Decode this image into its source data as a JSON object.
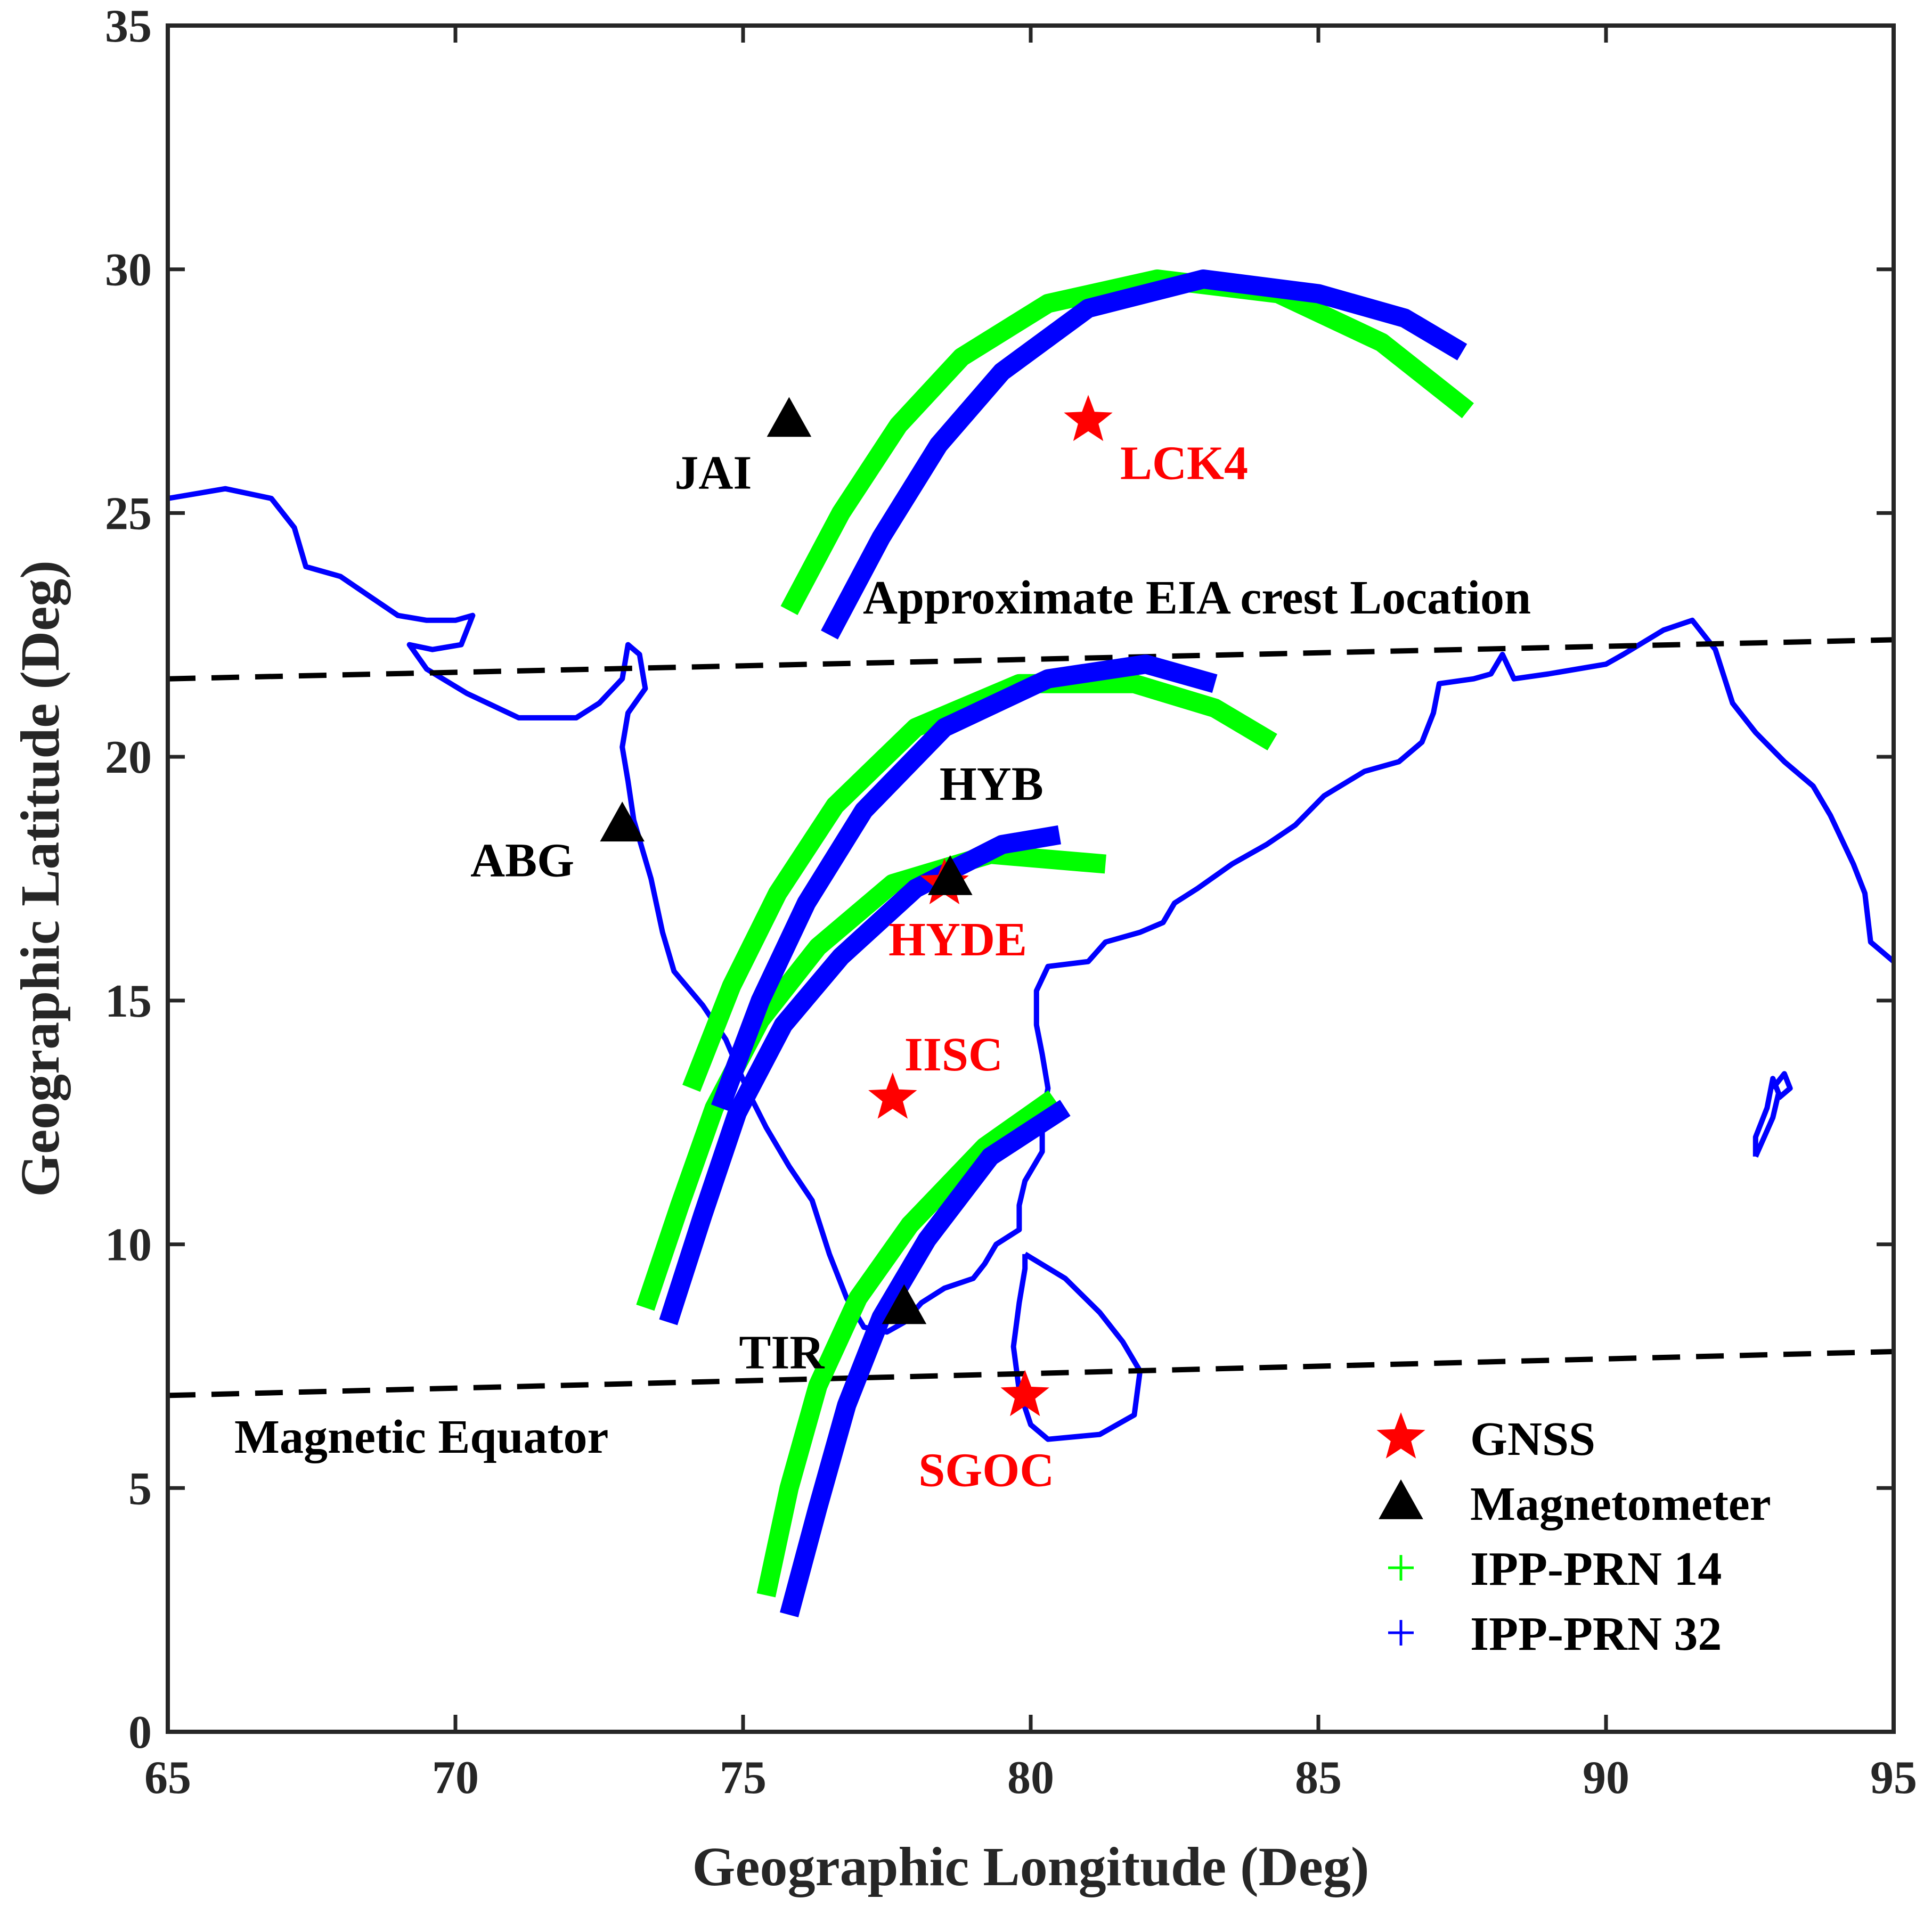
{
  "chart_data": {
    "type": "scatter",
    "xlabel": "Geographic Longitude (Deg)",
    "ylabel": "Geographic Latitude (Deg)",
    "xlim": [
      65,
      95
    ],
    "ylim": [
      0,
      35
    ],
    "xticks": [
      65,
      70,
      75,
      80,
      85,
      90,
      95
    ],
    "yticks": [
      0,
      5,
      10,
      15,
      20,
      25,
      30,
      35
    ],
    "grid": false,
    "legend_position": "bottom-right",
    "legend": [
      {
        "label": "GNSS",
        "marker": "star",
        "color": "#ff0000"
      },
      {
        "label": "Magnetometer",
        "marker": "triangle",
        "color": "#000000"
      },
      {
        "label": "IPP-PRN 14",
        "marker": "plus",
        "color": "#00ff00"
      },
      {
        "label": "IPP-PRN 32",
        "marker": "plus",
        "color": "#0000ff"
      }
    ],
    "coastline_color": "#0000ff",
    "coastline": [
      [
        [
          65.0,
          25.3
        ],
        [
          66.0,
          25.5
        ],
        [
          66.8,
          25.3
        ],
        [
          67.2,
          24.7
        ],
        [
          67.4,
          23.9
        ],
        [
          68.0,
          23.7
        ],
        [
          68.5,
          23.3
        ],
        [
          69.0,
          22.9
        ],
        [
          69.5,
          22.8
        ],
        [
          70.0,
          22.8
        ],
        [
          70.3,
          22.9
        ],
        [
          70.1,
          22.3
        ],
        [
          69.6,
          22.2
        ],
        [
          69.2,
          22.3
        ],
        [
          69.5,
          21.8
        ],
        [
          70.2,
          21.3
        ],
        [
          71.1,
          20.8
        ],
        [
          72.1,
          20.8
        ],
        [
          72.5,
          21.1
        ],
        [
          72.9,
          21.6
        ],
        [
          73.0,
          22.3
        ],
        [
          73.2,
          22.1
        ],
        [
          73.3,
          21.4
        ],
        [
          73.0,
          20.9
        ],
        [
          72.9,
          20.2
        ],
        [
          73.0,
          19.5
        ],
        [
          73.1,
          18.7
        ],
        [
          73.4,
          17.5
        ],
        [
          73.6,
          16.4
        ],
        [
          73.8,
          15.6
        ],
        [
          74.3,
          14.9
        ],
        [
          74.7,
          14.2
        ],
        [
          75.1,
          13.1
        ],
        [
          75.4,
          12.4
        ],
        [
          75.8,
          11.6
        ],
        [
          76.2,
          10.9
        ],
        [
          76.5,
          9.8
        ],
        [
          76.8,
          8.9
        ],
        [
          77.1,
          8.3
        ],
        [
          77.5,
          8.2
        ],
        [
          77.8,
          8.4
        ],
        [
          78.1,
          8.8
        ],
        [
          78.5,
          9.1
        ],
        [
          79.0,
          9.3
        ],
        [
          79.2,
          9.6
        ],
        [
          79.4,
          10.0
        ],
        [
          79.8,
          10.3
        ],
        [
          79.8,
          10.8
        ],
        [
          79.9,
          11.3
        ],
        [
          80.2,
          11.9
        ],
        [
          80.2,
          12.6
        ],
        [
          80.3,
          13.2
        ],
        [
          80.2,
          13.9
        ],
        [
          80.1,
          14.5
        ],
        [
          80.1,
          15.2
        ],
        [
          80.3,
          15.7
        ],
        [
          81.0,
          15.8
        ],
        [
          81.3,
          16.2
        ],
        [
          81.9,
          16.4
        ],
        [
          82.3,
          16.6
        ],
        [
          82.5,
          17.0
        ],
        [
          82.9,
          17.3
        ],
        [
          83.5,
          17.8
        ],
        [
          84.1,
          18.2
        ],
        [
          84.6,
          18.6
        ],
        [
          85.1,
          19.2
        ],
        [
          85.8,
          19.7
        ],
        [
          86.4,
          19.9
        ],
        [
          86.8,
          20.3
        ],
        [
          87.0,
          20.9
        ],
        [
          87.1,
          21.5
        ],
        [
          87.7,
          21.6
        ],
        [
          88.0,
          21.7
        ],
        [
          88.2,
          22.1
        ],
        [
          88.4,
          21.6
        ],
        [
          89.0,
          21.7
        ],
        [
          90.0,
          21.9
        ],
        [
          90.3,
          22.1
        ],
        [
          91.0,
          22.6
        ],
        [
          91.5,
          22.8
        ],
        [
          91.9,
          22.2
        ],
        [
          92.2,
          21.1
        ],
        [
          92.6,
          20.5
        ],
        [
          93.1,
          19.9
        ],
        [
          93.6,
          19.4
        ],
        [
          93.9,
          18.8
        ],
        [
          94.3,
          17.8
        ],
        [
          94.5,
          17.2
        ],
        [
          94.6,
          16.2
        ],
        [
          95.0,
          15.8
        ]
      ],
      [
        [
          79.9,
          9.8
        ],
        [
          80.6,
          9.3
        ],
        [
          81.2,
          8.6
        ],
        [
          81.6,
          8.0
        ],
        [
          81.9,
          7.4
        ],
        [
          81.8,
          6.5
        ],
        [
          81.2,
          6.1
        ],
        [
          80.3,
          6.0
        ],
        [
          80.0,
          6.3
        ],
        [
          79.8,
          7.0
        ],
        [
          79.7,
          7.9
        ],
        [
          79.8,
          8.8
        ],
        [
          79.9,
          9.5
        ],
        [
          79.9,
          9.8
        ]
      ],
      [
        [
          92.6,
          11.8
        ],
        [
          92.9,
          12.6
        ],
        [
          93.0,
          13.1
        ],
        [
          92.9,
          13.4
        ],
        [
          92.8,
          12.8
        ],
        [
          92.6,
          12.2
        ],
        [
          92.6,
          11.8
        ]
      ],
      [
        [
          92.9,
          13.2
        ],
        [
          93.1,
          13.5
        ],
        [
          93.2,
          13.2
        ],
        [
          93.0,
          13.0
        ]
      ]
    ],
    "dashed_lines": [
      {
        "name": "Approximate EIA crest Location",
        "points": [
          [
            65,
            21.6
          ],
          [
            95,
            22.4
          ]
        ]
      },
      {
        "name": "Magnetic Equator",
        "points": [
          [
            65,
            6.9
          ],
          [
            95,
            7.8
          ]
        ]
      }
    ],
    "series": [
      {
        "name": "IPP-PRN 14",
        "color": "#00ff00",
        "tracks": [
          [
            [
              75.8,
              23.0
            ],
            [
              76.7,
              25.0
            ],
            [
              77.7,
              26.8
            ],
            [
              78.8,
              28.2
            ],
            [
              80.3,
              29.3
            ],
            [
              82.2,
              29.8
            ],
            [
              84.3,
              29.5
            ],
            [
              86.1,
              28.5
            ],
            [
              87.6,
              27.1
            ]
          ],
          [
            [
              74.1,
              13.2
            ],
            [
              74.8,
              15.3
            ],
            [
              75.6,
              17.2
            ],
            [
              76.6,
              19.0
            ],
            [
              78.0,
              20.6
            ],
            [
              79.8,
              21.5
            ],
            [
              81.8,
              21.5
            ],
            [
              83.2,
              21.0
            ],
            [
              84.2,
              20.3
            ]
          ],
          [
            [
              73.3,
              8.7
            ],
            [
              73.9,
              10.8
            ],
            [
              74.5,
              12.8
            ],
            [
              75.3,
              14.6
            ],
            [
              76.3,
              16.1
            ],
            [
              77.6,
              17.4
            ],
            [
              79.3,
              18.0
            ],
            [
              81.3,
              17.8
            ]
          ],
          [
            [
              75.4,
              2.8
            ],
            [
              75.8,
              5.0
            ],
            [
              76.3,
              7.1
            ],
            [
              77.0,
              8.9
            ],
            [
              77.9,
              10.4
            ],
            [
              79.2,
              12.0
            ],
            [
              80.4,
              13.0
            ]
          ]
        ]
      },
      {
        "name": "IPP-PRN 32",
        "color": "#0000ff",
        "tracks": [
          [
            [
              76.5,
              22.5
            ],
            [
              77.4,
              24.5
            ],
            [
              78.4,
              26.4
            ],
            [
              79.5,
              27.9
            ],
            [
              81.0,
              29.2
            ],
            [
              83.0,
              29.8
            ],
            [
              85.0,
              29.5
            ],
            [
              86.5,
              29.0
            ],
            [
              87.5,
              28.3
            ]
          ],
          [
            [
              74.6,
              12.8
            ],
            [
              75.3,
              15.0
            ],
            [
              76.1,
              17.0
            ],
            [
              77.1,
              18.9
            ],
            [
              78.5,
              20.6
            ],
            [
              80.3,
              21.6
            ],
            [
              82.0,
              21.9
            ],
            [
              83.2,
              21.5
            ]
          ],
          [
            [
              73.7,
              8.4
            ],
            [
              74.3,
              10.6
            ],
            [
              74.9,
              12.7
            ],
            [
              75.7,
              14.5
            ],
            [
              76.7,
              15.9
            ],
            [
              78.0,
              17.3
            ],
            [
              79.5,
              18.2
            ],
            [
              80.5,
              18.4
            ]
          ],
          [
            [
              75.8,
              2.4
            ],
            [
              76.3,
              4.6
            ],
            [
              76.8,
              6.7
            ],
            [
              77.4,
              8.5
            ],
            [
              78.2,
              10.1
            ],
            [
              79.3,
              11.8
            ],
            [
              80.6,
              12.8
            ]
          ]
        ]
      }
    ],
    "gnss_stations": [
      {
        "label": "LCK4",
        "lon": 81.0,
        "lat": 26.9
      },
      {
        "label": "HYDE",
        "lon": 78.5,
        "lat": 17.4
      },
      {
        "label": "IISC",
        "lon": 77.6,
        "lat": 13.0
      },
      {
        "label": "SGOC",
        "lon": 79.9,
        "lat": 6.9
      }
    ],
    "magnetometer_stations": [
      {
        "label": "JAI",
        "lon": 75.8,
        "lat": 26.9
      },
      {
        "label": "ABG",
        "lon": 72.9,
        "lat": 18.6
      },
      {
        "label": "HYB",
        "lon": 78.6,
        "lat": 17.5
      },
      {
        "label": "TIR",
        "lon": 77.8,
        "lat": 8.7
      }
    ]
  }
}
